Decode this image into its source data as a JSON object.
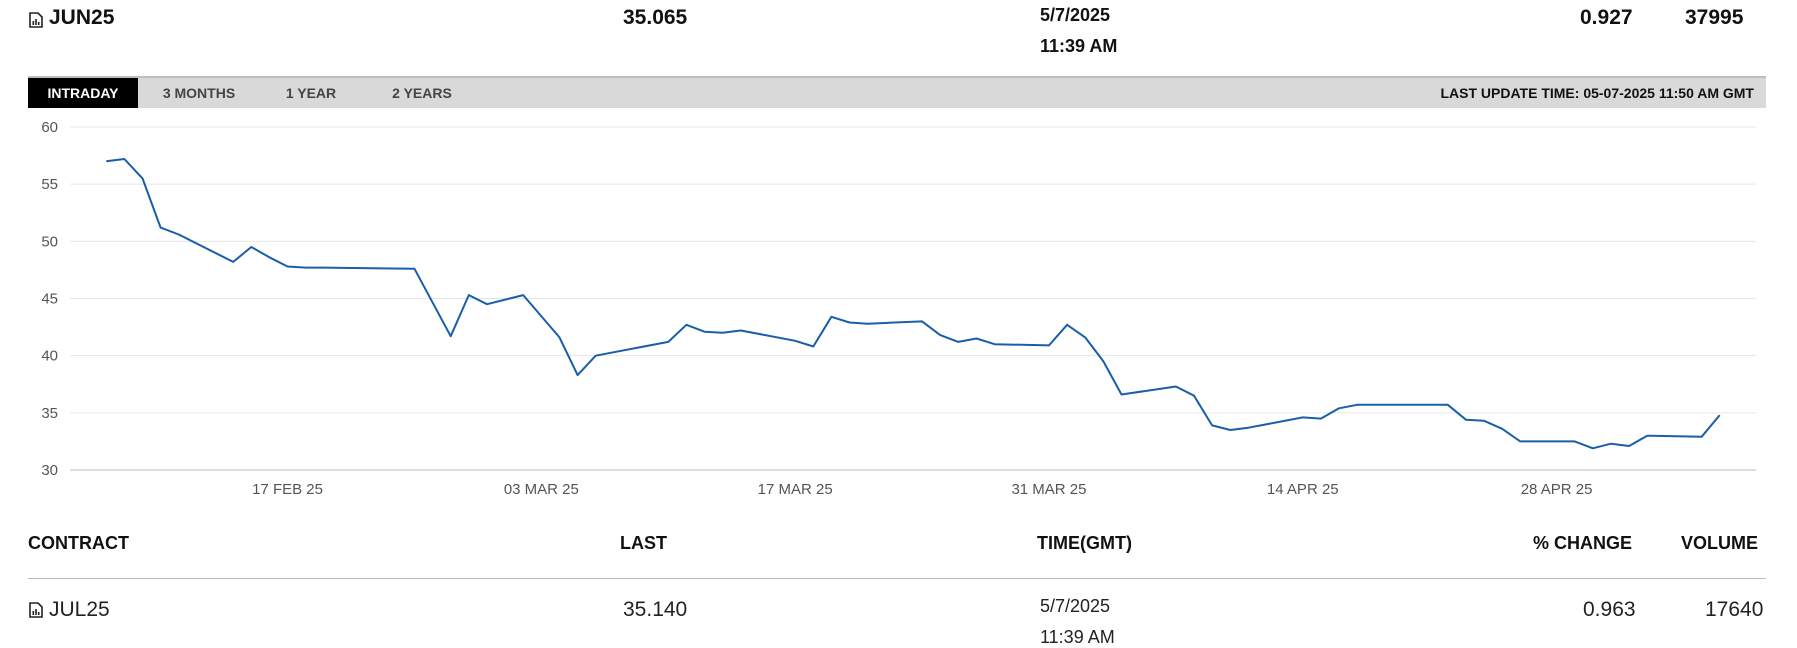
{
  "header": {
    "contract": "JUN25",
    "last": "35.065",
    "date": "5/7/2025",
    "time": "11:39 AM",
    "pct_change": "0.927",
    "volume": "37995",
    "icon": "chart-document-icon"
  },
  "tabs": [
    {
      "label": "INTRADAY",
      "active": true
    },
    {
      "label": "3 MONTHS",
      "active": false
    },
    {
      "label": "1 YEAR",
      "active": false
    },
    {
      "label": "2 YEARS",
      "active": false
    }
  ],
  "last_update": "LAST UPDATE TIME: 05-07-2025 11:50 AM GMT",
  "colors": {
    "line": "#1a5ea8",
    "grid": "#e6e6e6",
    "tab_active_bg": "#000000",
    "tab_bar_bg": "#d9d9d9"
  },
  "chart_data": {
    "type": "line",
    "title": "",
    "xlabel": "",
    "ylabel": "",
    "ylim": [
      30,
      60
    ],
    "yticks": [
      60,
      55,
      50,
      45,
      40,
      35,
      30
    ],
    "xticks": [
      "17 FEB 25",
      "03 MAR 25",
      "17 MAR 25",
      "31 MAR 25",
      "14 APR 25",
      "28 APR 25"
    ],
    "xtick_dates": [
      "2025-02-17",
      "2025-03-03",
      "2025-03-17",
      "2025-03-31",
      "2025-04-14",
      "2025-04-28"
    ],
    "xlim": [
      "2025-02-05",
      "2025-05-09"
    ],
    "grid": true,
    "series": [
      {
        "x": [
          "2025-02-07",
          "2025-02-08",
          "2025-02-09",
          "2025-02-10",
          "2025-02-11",
          "2025-02-14",
          "2025-02-15",
          "2025-02-16",
          "2025-02-17",
          "2025-02-18",
          "2025-02-19",
          "2025-02-24",
          "2025-02-26",
          "2025-02-27",
          "2025-02-28",
          "2025-03-02",
          "2025-03-04",
          "2025-03-05",
          "2025-03-06",
          "2025-03-07",
          "2025-03-10",
          "2025-03-11",
          "2025-03-12",
          "2025-03-13",
          "2025-03-14",
          "2025-03-17",
          "2025-03-18",
          "2025-03-19",
          "2025-03-20",
          "2025-03-21",
          "2025-03-24",
          "2025-03-25",
          "2025-03-26",
          "2025-03-27",
          "2025-03-28",
          "2025-03-31",
          "2025-04-01",
          "2025-04-02",
          "2025-04-03",
          "2025-04-04",
          "2025-04-07",
          "2025-04-08",
          "2025-04-09",
          "2025-04-10",
          "2025-04-11",
          "2025-04-14",
          "2025-04-15",
          "2025-04-16",
          "2025-04-17",
          "2025-04-22",
          "2025-04-23",
          "2025-04-24",
          "2025-04-25",
          "2025-04-26",
          "2025-04-29",
          "2025-04-30",
          "2025-05-01",
          "2025-05-02",
          "2025-05-03",
          "2025-05-06",
          "2025-05-07"
        ],
        "values": [
          57.0,
          57.2,
          55.5,
          51.2,
          50.6,
          48.2,
          49.5,
          48.6,
          47.8,
          47.7,
          47.7,
          47.6,
          41.7,
          45.3,
          44.5,
          45.3,
          41.6,
          38.3,
          40.0,
          40.3,
          41.2,
          42.7,
          42.1,
          42.0,
          42.2,
          41.3,
          40.8,
          43.4,
          42.9,
          42.8,
          43.0,
          41.8,
          41.2,
          41.5,
          41.0,
          40.9,
          42.7,
          41.6,
          39.5,
          36.6,
          37.3,
          36.5,
          33.9,
          33.5,
          33.7,
          34.6,
          34.5,
          35.4,
          35.7,
          35.7,
          34.4,
          34.3,
          33.6,
          32.5,
          32.5,
          31.9,
          32.3,
          32.1,
          33.0,
          32.9,
          34.8
        ]
      }
    ]
  },
  "table": {
    "headers": {
      "contract": "CONTRACT",
      "last": "LAST",
      "time": "TIME(GMT)",
      "pct_change": "% CHANGE",
      "volume": "VOLUME"
    },
    "rows": [
      {
        "contract": "JUL25",
        "last": "35.140",
        "date": "5/7/2025",
        "time": "11:39 AM",
        "pct_change": "0.963",
        "volume": "17640"
      }
    ]
  }
}
